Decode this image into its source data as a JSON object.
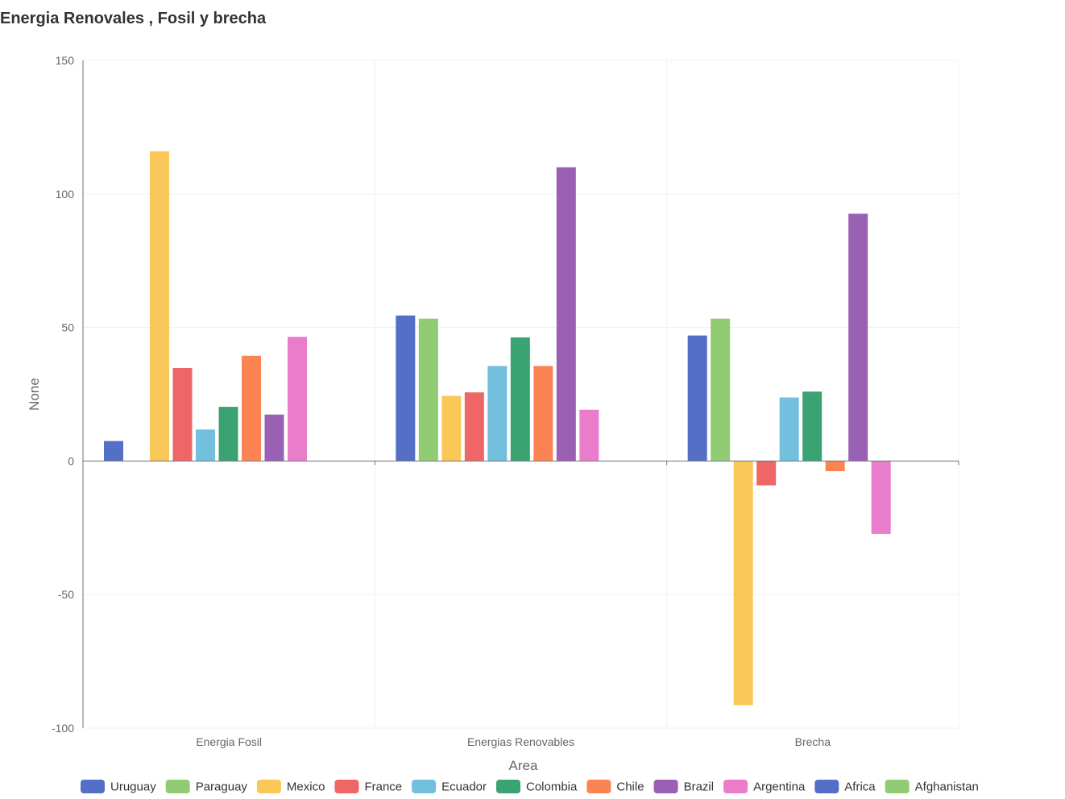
{
  "chart_data": {
    "type": "bar",
    "title": "Energia Renovales , Fosil y brecha",
    "xlabel": "Area",
    "ylabel": "None",
    "ylim": [
      -100,
      150
    ],
    "yticks": [
      150,
      100,
      50,
      0,
      -50,
      -100
    ],
    "categories": [
      "Energia Fosil",
      "Energias Renovables",
      "Brecha"
    ],
    "series": [
      {
        "name": "Uruguay",
        "color": "#5470c6",
        "values": [
          7.5,
          54.5,
          47
        ]
      },
      {
        "name": "Paraguay",
        "color": "#91cc75",
        "values": [
          0,
          53.3,
          53.3
        ]
      },
      {
        "name": "Mexico",
        "color": "#fac858",
        "values": [
          116,
          24.4,
          -91.4
        ]
      },
      {
        "name": "France",
        "color": "#ee6666",
        "values": [
          34.8,
          25.7,
          -9.1
        ]
      },
      {
        "name": "Ecuador",
        "color": "#73c0de",
        "values": [
          11.8,
          35.6,
          23.8
        ]
      },
      {
        "name": "Colombia",
        "color": "#3ba272",
        "values": [
          20.3,
          46.3,
          26
        ]
      },
      {
        "name": "Chile",
        "color": "#fc8452",
        "values": [
          39.4,
          35.6,
          -3.8
        ]
      },
      {
        "name": "Brazil",
        "color": "#9a60b4",
        "values": [
          17.4,
          110,
          92.6
        ]
      },
      {
        "name": "Argentina",
        "color": "#ea7ccc",
        "values": [
          46.5,
          19.2,
          -27.3
        ]
      },
      {
        "name": "Africa",
        "color": "#5470c6",
        "values": [
          0,
          0,
          0
        ]
      },
      {
        "name": "Afghanistan",
        "color": "#91cc75",
        "values": [
          0,
          0,
          0
        ]
      }
    ]
  }
}
